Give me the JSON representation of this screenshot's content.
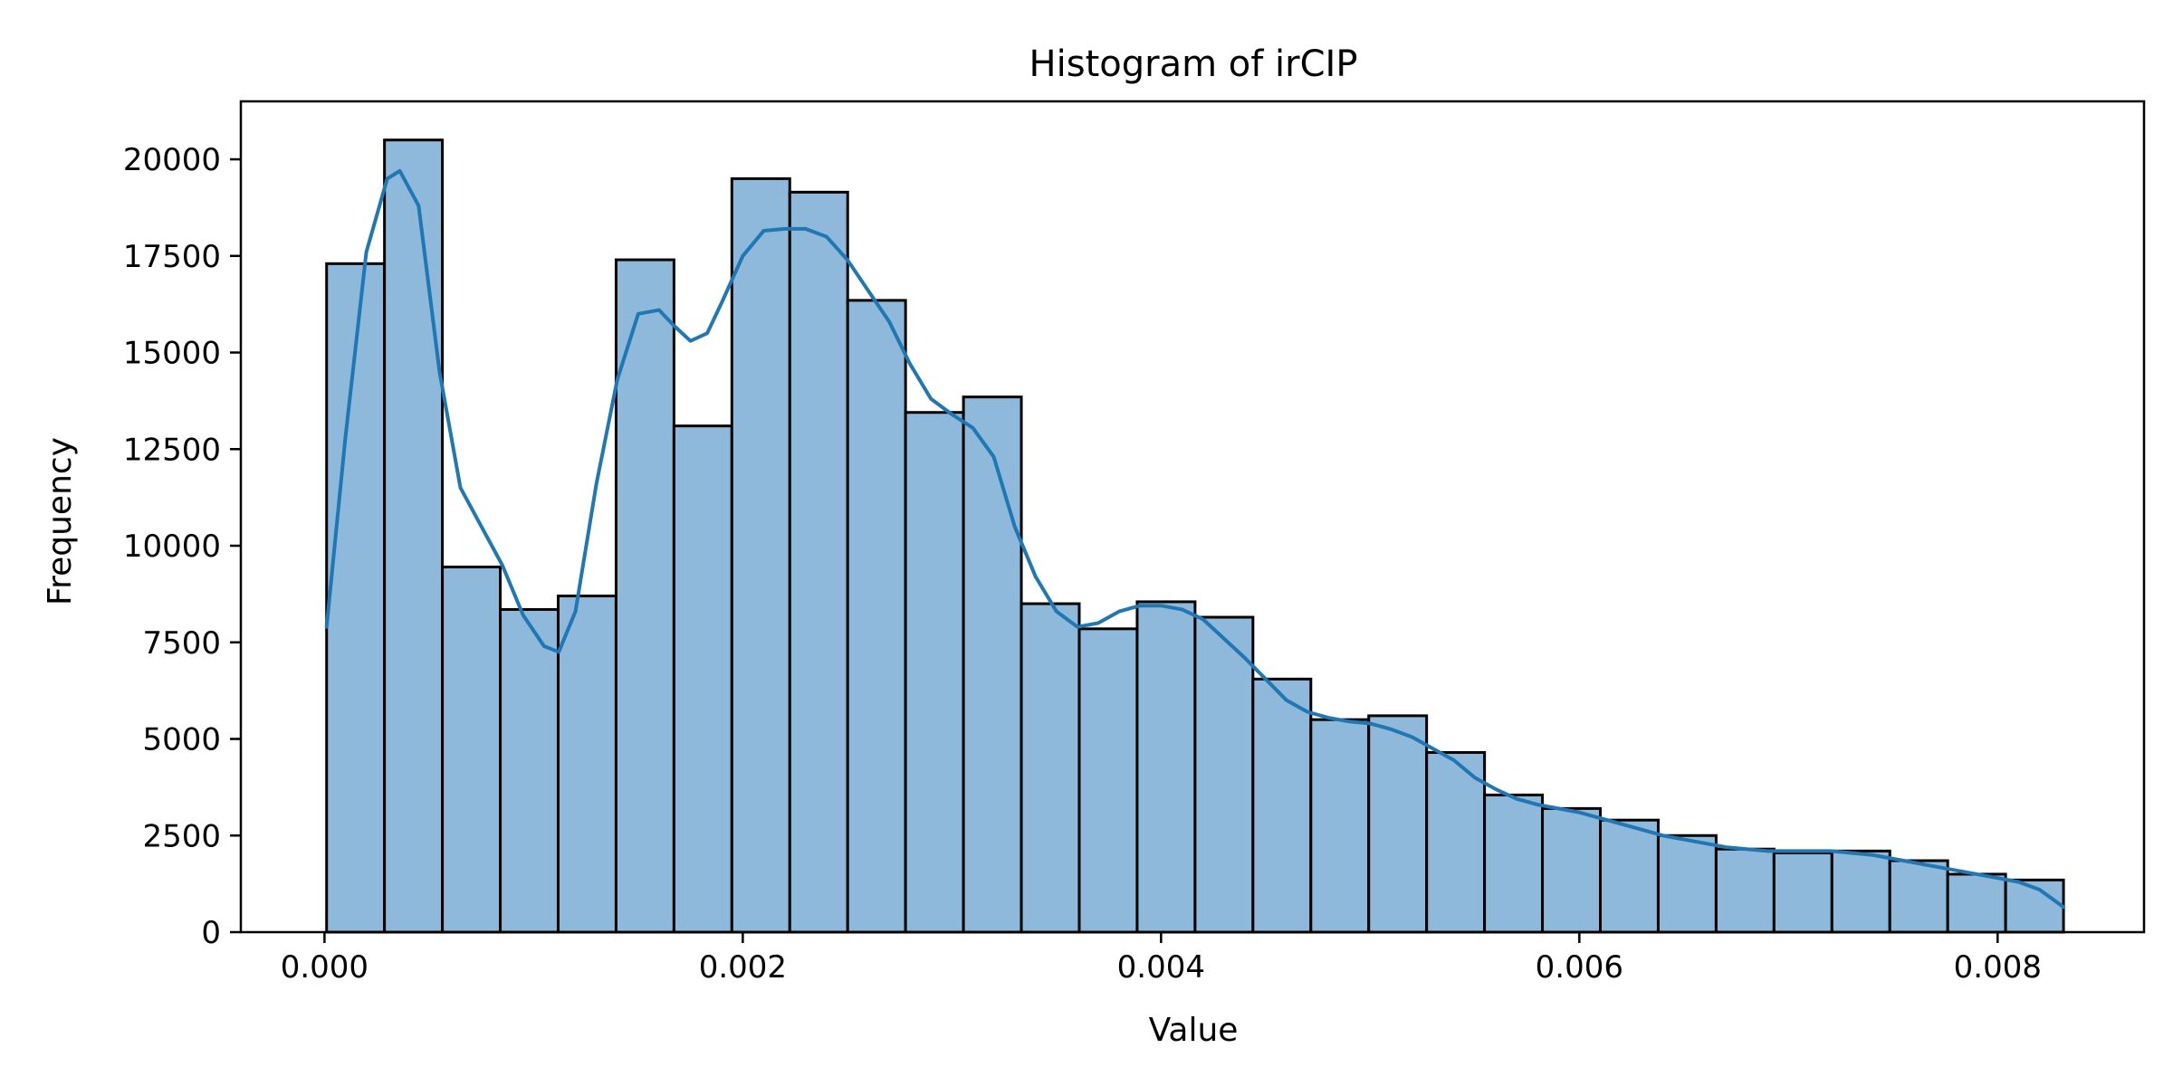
{
  "chart_data": {
    "type": "bar",
    "title": "Histogram of irCIP",
    "xlabel": "Value",
    "ylabel": "Frequency",
    "xlim": [
      -0.0004,
      0.0087
    ],
    "ylim": [
      0,
      21500
    ],
    "xticks": [
      0.0,
      0.002,
      0.004,
      0.006,
      0.008
    ],
    "xtick_labels": [
      "0.000",
      "0.002",
      "0.004",
      "0.006",
      "0.008"
    ],
    "yticks": [
      0,
      2500,
      5000,
      7500,
      10000,
      12500,
      15000,
      17500,
      20000
    ],
    "ytick_labels": [
      "0",
      "2500",
      "5000",
      "7500",
      "10000",
      "12500",
      "15000",
      "17500",
      "20000"
    ],
    "bin_edges": [
      1e-05,
      0.0002868,
      0.0005637,
      0.0008405,
      0.0011173,
      0.0013942,
      0.001671,
      0.0019478,
      0.0022247,
      0.0025015,
      0.0027783,
      0.0030552,
      0.003332,
      0.0036088,
      0.0038857,
      0.0041625,
      0.0044393,
      0.0047162,
      0.004993,
      0.0052698,
      0.0055467,
      0.0058235,
      0.0061003,
      0.0063772,
      0.006654,
      0.0069308,
      0.0072077,
      0.0074845,
      0.0077613,
      0.0080382,
      0.008315
    ],
    "values": [
      17300,
      20500,
      9450,
      8350,
      8700,
      17400,
      13100,
      19500,
      19150,
      16350,
      13450,
      13850,
      8500,
      7850,
      8550,
      8150,
      6550,
      5500,
      5600,
      4650,
      3550,
      3200,
      2900,
      2500,
      2150,
      2050,
      2100,
      1850,
      1500,
      1350
    ],
    "kde": {
      "x": [
        1e-05,
        0.0001,
        0.0002,
        0.0003,
        0.00036,
        0.00045,
        0.00055,
        0.00065,
        0.00075,
        0.00085,
        0.00095,
        0.00105,
        0.00112,
        0.0012,
        0.0013,
        0.0014,
        0.0015,
        0.0016,
        0.00167,
        0.00175,
        0.00183,
        0.0019,
        0.002,
        0.0021,
        0.0022,
        0.0023,
        0.0024,
        0.0025,
        0.0026,
        0.0027,
        0.0028,
        0.0029,
        0.003,
        0.0031,
        0.0032,
        0.0033,
        0.0034,
        0.0035,
        0.0036,
        0.0037,
        0.0038,
        0.0039,
        0.004,
        0.0041,
        0.0042,
        0.0043,
        0.0044,
        0.0045,
        0.0046,
        0.0047,
        0.0048,
        0.0049,
        0.005,
        0.0051,
        0.0052,
        0.0053,
        0.0054,
        0.0055,
        0.0056,
        0.0057,
        0.0058,
        0.0059,
        0.006,
        0.0061,
        0.0062,
        0.0063,
        0.0064,
        0.0065,
        0.0066,
        0.0067,
        0.0068,
        0.0069,
        0.007,
        0.0071,
        0.0072,
        0.0073,
        0.0074,
        0.0075,
        0.0076,
        0.0077,
        0.0078,
        0.0079,
        0.008,
        0.0081,
        0.0082,
        0.008315
      ],
      "y": [
        7900,
        12800,
        17600,
        19500,
        19700,
        18800,
        14500,
        11500,
        10500,
        9500,
        8200,
        7400,
        7250,
        8300,
        11600,
        14300,
        16000,
        16100,
        15700,
        15300,
        15500,
        16300,
        17500,
        18150,
        18200,
        18200,
        18000,
        17400,
        16600,
        15800,
        14700,
        13800,
        13400,
        13050,
        12300,
        10500,
        9200,
        8300,
        7900,
        8000,
        8300,
        8450,
        8450,
        8350,
        8100,
        7600,
        7100,
        6550,
        6000,
        5700,
        5550,
        5450,
        5400,
        5250,
        5050,
        4750,
        4450,
        4000,
        3700,
        3450,
        3300,
        3200,
        3100,
        2950,
        2800,
        2650,
        2500,
        2400,
        2300,
        2200,
        2150,
        2100,
        2100,
        2100,
        2100,
        2050,
        2000,
        1900,
        1800,
        1700,
        1600,
        1500,
        1400,
        1300,
        1100,
        650
      ]
    }
  }
}
